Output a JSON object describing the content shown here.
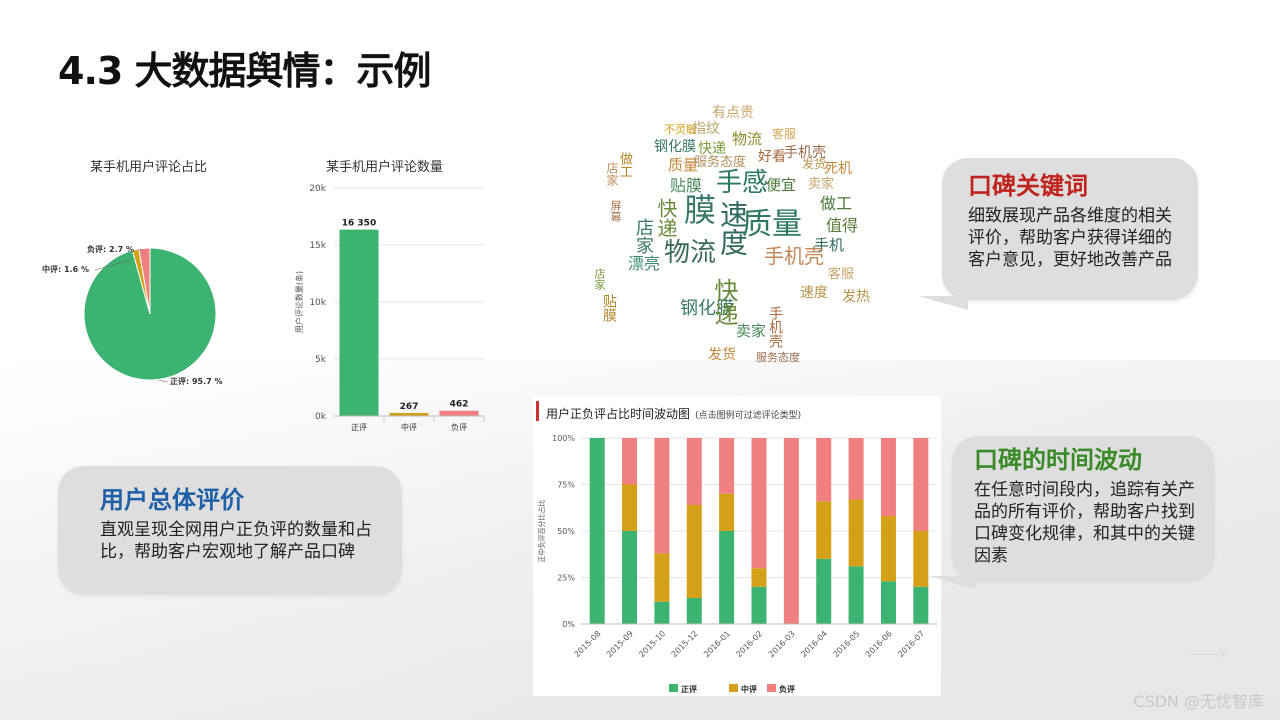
{
  "slide": {
    "title": "4.3 大数据舆情：示例",
    "watermark": "CSDN @无忧智库"
  },
  "callouts": {
    "overall": {
      "heading": "用户总体评价",
      "body": "直观呈现全网用户正负评的数量和占比，帮助客户宏观地了解产品口碑",
      "heading_color": "#1f5fa8"
    },
    "keywords": {
      "heading": "口碑关键词",
      "body": "细致展现产品各维度的相关评价，帮助客户获得详细的客户意见，更好地改善产品",
      "heading_color": "#c0231e"
    },
    "time": {
      "heading": "口碑的时间波动",
      "body": "在任意时间段内，追踪有关产品的所有评价，帮助客户找到口碑变化规律，和其中的关键因素",
      "heading_color": "#3a8a2a"
    }
  },
  "chart_data": [
    {
      "type": "pie",
      "title": "某手机用户评论占比",
      "slices": [
        {
          "label": "正评",
          "value": 95.7,
          "text": "正评: 95.7 %",
          "color": "#3cb371"
        },
        {
          "label": "中评",
          "value": 1.6,
          "text": "中评: 1.6 %",
          "color": "#d4a017"
        },
        {
          "label": "负评",
          "value": 2.7,
          "text": "负评: 2.7 %",
          "color": "#f08080"
        }
      ]
    },
    {
      "type": "bar",
      "title": "某手机用户评论数量",
      "ylabel": "用户评论数量(条)",
      "categories": [
        "正评",
        "中评",
        "负评"
      ],
      "values": [
        16350,
        267,
        462
      ],
      "value_labels": [
        "16 350",
        "267",
        "462"
      ],
      "colors": [
        "#3cb371",
        "#d4a017",
        "#f08080"
      ],
      "ylim": [
        0,
        20000
      ],
      "yticks": [
        0,
        5000,
        10000,
        15000,
        20000
      ],
      "ytick_labels": [
        "0k",
        "5k",
        "10k",
        "15k",
        "20k"
      ]
    },
    {
      "type": "bar",
      "stacked": true,
      "title": "用户正负评占比时间波动图",
      "subtitle": "(点击图例可过滤评论类型)",
      "ylabel": "正中负评百分比占比",
      "categories": [
        "2015-08",
        "2015-09",
        "2015-10",
        "2015-12",
        "2016-01",
        "2016-02",
        "2016-03",
        "2016-04",
        "2016-05",
        "2016-06",
        "2016-07"
      ],
      "series": [
        {
          "name": "正评",
          "color": "#3cb371",
          "values": [
            100,
            50,
            12,
            14,
            50,
            20,
            0,
            35,
            31,
            23,
            20
          ]
        },
        {
          "name": "中评",
          "color": "#d4a017",
          "values": [
            0,
            25,
            26,
            50,
            20,
            10,
            0,
            31,
            36,
            35,
            30
          ]
        },
        {
          "name": "负评",
          "color": "#f08080",
          "values": [
            0,
            25,
            62,
            36,
            30,
            70,
            100,
            34,
            33,
            42,
            50
          ]
        }
      ],
      "ylim": [
        0,
        100
      ],
      "yticks": [
        0,
        25,
        50,
        75,
        100
      ],
      "ytick_labels": [
        "0%",
        "25%",
        "50%",
        "75%",
        "100%"
      ],
      "legend": "bottom"
    }
  ],
  "word_cloud": {
    "words": [
      {
        "text": "有点贵",
        "color": "#c9a66b"
      },
      {
        "text": "不灵敏",
        "color": "#d4a017"
      },
      {
        "text": "指纹",
        "color": "#b9a46a"
      },
      {
        "text": "物流",
        "color": "#8a8a2a"
      },
      {
        "text": "客服",
        "color": "#d7a85a"
      },
      {
        "text": "钢化膜",
        "color": "#3a7a6a"
      },
      {
        "text": "快递",
        "color": "#7a9a3a"
      },
      {
        "text": "做工",
        "color": "#b0852a"
      },
      {
        "text": "质量",
        "color": "#c4883a"
      },
      {
        "text": "服务态度",
        "color": "#b2905a"
      },
      {
        "text": "好看",
        "color": "#a86a3a"
      },
      {
        "text": "手机壳",
        "color": "#9a6a4a"
      },
      {
        "text": "店家",
        "color": "#c08a5a"
      },
      {
        "text": "发货",
        "color": "#b7944a"
      },
      {
        "text": "死机",
        "color": "#c4883a"
      },
      {
        "text": "贴膜",
        "color": "#4a8a5a"
      },
      {
        "text": "手感",
        "color": "#2e7a5e"
      },
      {
        "text": "便宜",
        "color": "#4a7a3a"
      },
      {
        "text": "卖家",
        "color": "#c9a66b"
      },
      {
        "text": "膜",
        "color": "#3a7a6a"
      },
      {
        "text": "屏幕",
        "color": "#a8744a"
      },
      {
        "text": "快递",
        "color": "#6a8a3a"
      },
      {
        "text": "速度",
        "color": "#2e6a5e"
      },
      {
        "text": "质量",
        "color": "#2e7a5e"
      },
      {
        "text": "店家",
        "color": "#3a7a6a"
      },
      {
        "text": "做工",
        "color": "#4a7a3a"
      },
      {
        "text": "值得",
        "color": "#5a7a3a"
      },
      {
        "text": "物流",
        "color": "#3a6a5a"
      },
      {
        "text": "手机",
        "color": "#2e6a5e"
      },
      {
        "text": "漂亮",
        "color": "#3a8a6a"
      },
      {
        "text": "手机壳",
        "color": "#c08a5a"
      },
      {
        "text": "发热",
        "color": "#b7944a"
      },
      {
        "text": "钢化膜",
        "color": "#3a7a6a"
      },
      {
        "text": "快递",
        "color": "#6a8a3a"
      },
      {
        "text": "卖家",
        "color": "#4a8a5a"
      },
      {
        "text": "手机壳",
        "color": "#a86a3a"
      },
      {
        "text": "贴膜",
        "color": "#b0852a"
      },
      {
        "text": "发货",
        "color": "#c4883a"
      },
      {
        "text": "服务态度",
        "color": "#9a6a4a"
      },
      {
        "text": "速度",
        "color": "#b7944a"
      },
      {
        "text": "客服",
        "color": "#c9a66b"
      },
      {
        "text": "店家",
        "color": "#7a9a3a"
      }
    ]
  }
}
